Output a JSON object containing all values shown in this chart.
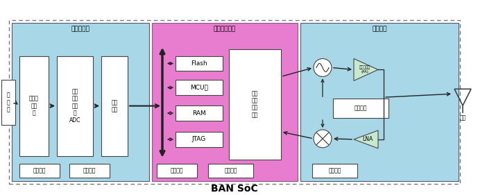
{
  "title": "BAN SoC",
  "outer_bg": "#ffffff",
  "preprocess_color": "#9ECFDA",
  "baseband_color": "#E87DD0",
  "rf_color": "#9ECFDA",
  "block_face": "#ffffff",
  "preprocess_label": "预处理模块",
  "baseband_label": "基带处理模块",
  "rf_label": "射频模块",
  "sensor_label": "传\n感\n器",
  "analog_fe_label": "模拟前\n端电\n路",
  "adc_label": "模拟\n数字\n转换\n器\nADC",
  "interface_label": "接口\n逻辑",
  "power1_label": "电源管理",
  "clock1_label": "时钟电路",
  "flash_label": "Flash",
  "mcu_label": "MCU核",
  "ram_label": "RAM",
  "jtag_label": "JTAG",
  "baseband_logic_label": "基带\n信号\n处理\n逻辑",
  "power2_label": "电源管理",
  "clock2_label": "时钟电路",
  "pa_label": "功率放大器\n(PA)",
  "freq_synth_label": "频率综合",
  "lna_label": "LNA",
  "power3_label": "电源管理",
  "antenna_label": "天线",
  "font_size_label": 6.5,
  "font_size_title": 10,
  "font_size_small": 5.5
}
